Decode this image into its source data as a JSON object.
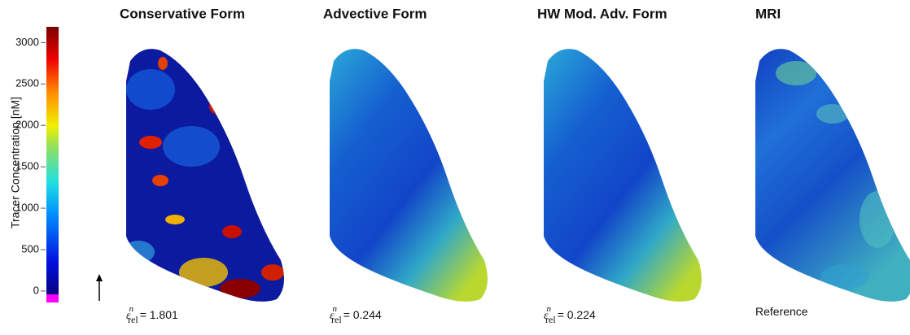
{
  "colorbar": {
    "label": "Tracer Concentration [nM]",
    "ylim": [
      -40,
      3190
    ],
    "yticks": [
      0,
      500,
      1000,
      1500,
      2000,
      2500,
      3000
    ]
  },
  "metric": {
    "symbol": "ε",
    "sub": "rel",
    "sup": "n"
  },
  "panels": [
    {
      "title": "Conservative Form",
      "value_text": "= 1.801"
    },
    {
      "title": "Advective Form",
      "value_text": "= 0.244"
    },
    {
      "title": "HW Mod. Adv. Form",
      "value_text": "= 0.224"
    },
    {
      "title": "MRI",
      "caption": "Reference"
    }
  ]
}
